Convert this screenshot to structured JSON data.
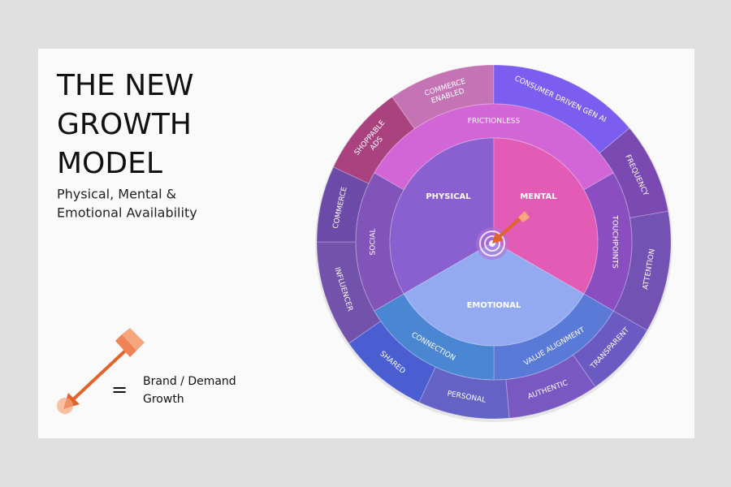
{
  "header": {
    "title": [
      "THE NEW",
      "GROWTH",
      "MODEL"
    ],
    "subtitle": [
      "Physical, Mental &",
      "Emotional Availability"
    ]
  },
  "legend": {
    "symbol": "=",
    "label": [
      "Brand / Demand",
      "Growth"
    ]
  },
  "wheel": {
    "inner": [
      {
        "label": [
          "PHYSICAL"
        ],
        "color": "#8a5fd0"
      },
      {
        "label": [
          "MENTAL"
        ],
        "color": "#e25cb6"
      },
      {
        "label": [
          "EMOTIONAL"
        ],
        "color": "#93aaf2"
      }
    ],
    "middle": [
      {
        "label": [
          "FRICTIONLESS"
        ],
        "color": "#d366d6"
      },
      {
        "label": [
          "TOUCHPOINTS"
        ],
        "color": "#8a4ec0"
      },
      {
        "label": [
          "VALUE ALIGNMENT"
        ],
        "color": "#5a7ad8"
      },
      {
        "label": [
          "CONNECTION"
        ],
        "color": "#4a86d2"
      },
      {
        "label": [
          "SOCIAL"
        ],
        "color": "#8254ba"
      }
    ],
    "outer": [
      {
        "label": [
          "SHOPPABLE",
          "ADS"
        ],
        "color": "#a9427f"
      },
      {
        "label": [
          "COMMERCE",
          "ENABLED"
        ],
        "color": "#c474b4"
      },
      {
        "label": [
          "CONSUMER DRIVEN GEN AI"
        ],
        "color": "#7b5ef0"
      },
      {
        "label": [
          "FREQUENCY"
        ],
        "color": "#7a4ab2"
      },
      {
        "label": [
          "ATTENTION"
        ],
        "color": "#7252b2"
      },
      {
        "label": [
          "TRANSPARENT"
        ],
        "color": "#6a5ac2"
      },
      {
        "label": [
          "AUTHENTIC"
        ],
        "color": "#7a58c2"
      },
      {
        "label": [
          "PERSONAL"
        ],
        "color": "#6462c4"
      },
      {
        "label": [
          "SHARED"
        ],
        "color": "#4a5ed2"
      },
      {
        "label": [
          "INFLUENCER"
        ],
        "color": "#7252aa"
      },
      {
        "label": [
          "COMMERCE"
        ],
        "color": "#6c4aa8"
      }
    ]
  }
}
